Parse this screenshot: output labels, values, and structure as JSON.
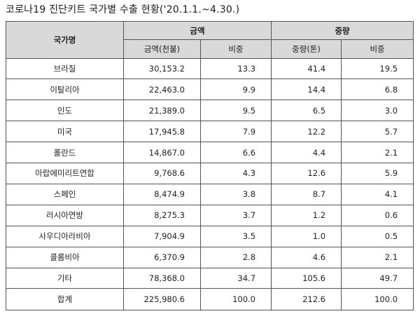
{
  "caption": "코로나19 진단키트 국가별 수출 현황('20.1.1.~4.30.)",
  "headers": {
    "country": "국가명",
    "amount_group": "금액",
    "weight_group": "중량",
    "amount": "금액(천불)",
    "amount_share": "비중",
    "weight": "중량(톤)",
    "weight_share": "비중"
  },
  "rows": [
    {
      "country": "브라질",
      "amount": "30,153.2",
      "amount_share": "13.3",
      "weight": "41.4",
      "weight_share": "19.5"
    },
    {
      "country": "이탈리아",
      "amount": "22,463.0",
      "amount_share": "9.9",
      "weight": "14.4",
      "weight_share": "6.8"
    },
    {
      "country": "인도",
      "amount": "21,389.0",
      "amount_share": "9.5",
      "weight": "6.5",
      "weight_share": "3.0"
    },
    {
      "country": "미국",
      "amount": "17,945.8",
      "amount_share": "7.9",
      "weight": "12.2",
      "weight_share": "5.7"
    },
    {
      "country": "폴란드",
      "amount": "14,867.0",
      "amount_share": "6.6",
      "weight": "4.4",
      "weight_share": "2.1"
    },
    {
      "country": "아랍에미리트연합",
      "amount": "9,768.6",
      "amount_share": "4.3",
      "weight": "12.6",
      "weight_share": "5.9"
    },
    {
      "country": "스페인",
      "amount": "8,474.9",
      "amount_share": "3.8",
      "weight": "8.7",
      "weight_share": "4.1"
    },
    {
      "country": "러시아연방",
      "amount": "8,275.3",
      "amount_share": "3.7",
      "weight": "1.2",
      "weight_share": "0.6"
    },
    {
      "country": "사우디아라비아",
      "amount": "7,904.9",
      "amount_share": "3.5",
      "weight": "1.0",
      "weight_share": "0.5"
    },
    {
      "country": "콜롬비아",
      "amount": "6,370.9",
      "amount_share": "2.8",
      "weight": "4.6",
      "weight_share": "2.1"
    },
    {
      "country": "기타",
      "amount": "78,368.0",
      "amount_share": "34.7",
      "weight": "105.6",
      "weight_share": "49.7"
    },
    {
      "country": "합계",
      "amount": "225,980.6",
      "amount_share": "100.0",
      "weight": "212.6",
      "weight_share": "100.0"
    }
  ]
}
